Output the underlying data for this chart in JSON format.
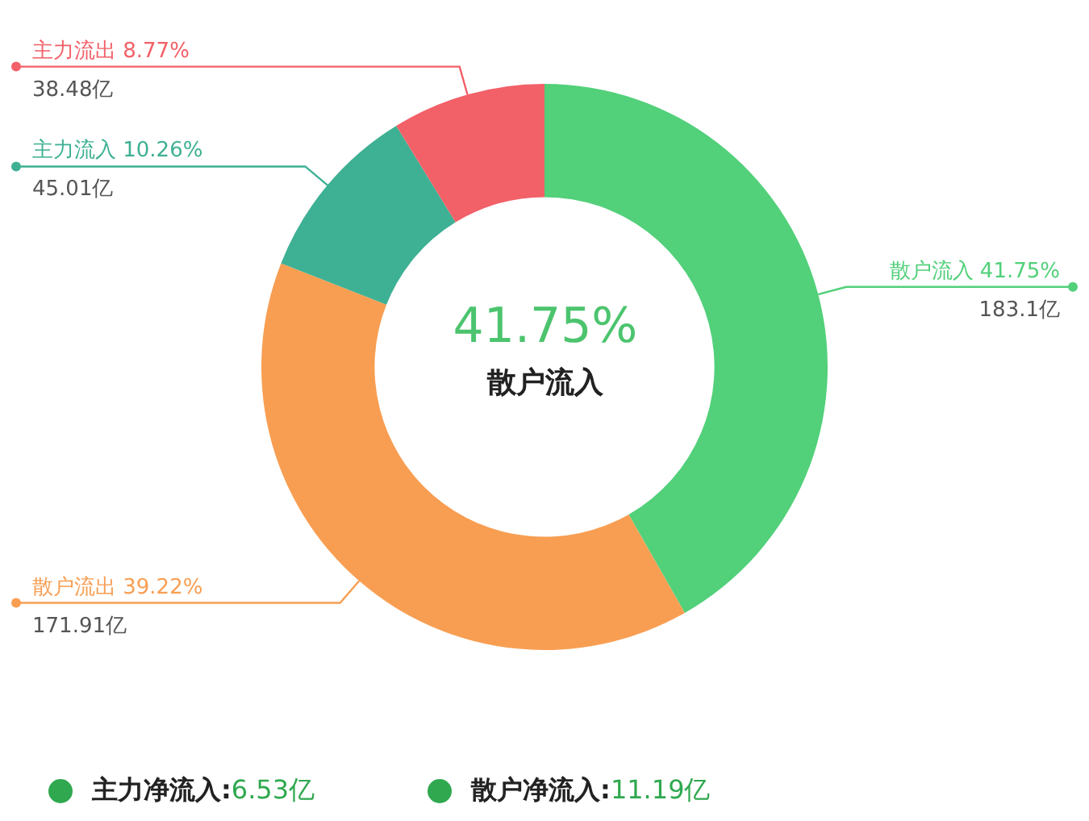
{
  "chart_data": {
    "type": "donut",
    "categories": [
      "散户流入",
      "散户流出",
      "主力流入",
      "主力流出"
    ],
    "values": [
      41.75,
      39.22,
      10.26,
      8.77
    ],
    "colors": [
      "#52d07a",
      "#f89e52",
      "#3eb093",
      "#f26068"
    ],
    "value_labels": [
      "41.75%",
      "39.22%",
      "10.26%",
      "8.77%"
    ],
    "annotations": [
      "183.1亿",
      "171.91亿",
      "45.01亿",
      "38.48亿",
      "41.75%",
      "散户流入",
      "主力净流入:6.53亿",
      "散户净流入:11.19亿"
    ],
    "legend": false
  }
}
